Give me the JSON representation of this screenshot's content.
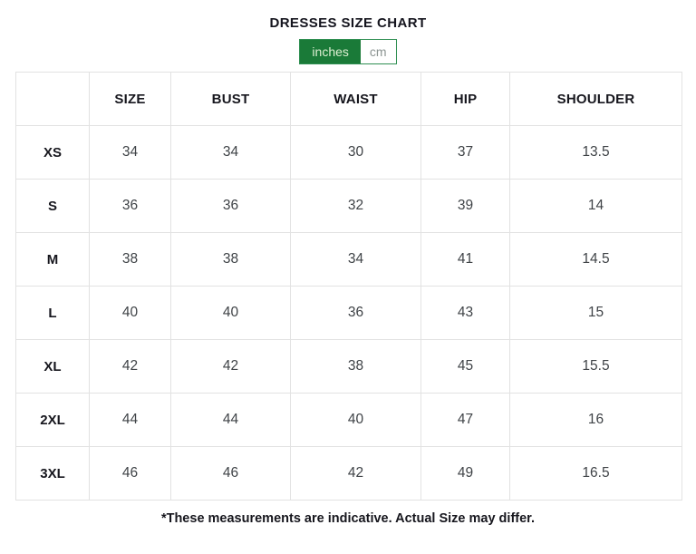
{
  "page": {
    "title": "DRESSES SIZE CHART",
    "footnote": "*These measurements are indicative. Actual Size may differ."
  },
  "unit_toggle": {
    "selected": "inches",
    "options": [
      {
        "label": "inches",
        "active": true
      },
      {
        "label": "cm",
        "active": false
      }
    ]
  },
  "table": {
    "columns": [
      "",
      "SIZE",
      "BUST",
      "WAIST",
      "HIP",
      "SHOULDER"
    ],
    "rows": [
      {
        "label": "XS",
        "values": [
          "34",
          "34",
          "30",
          "37",
          "13.5"
        ]
      },
      {
        "label": "S",
        "values": [
          "36",
          "36",
          "32",
          "39",
          "14"
        ]
      },
      {
        "label": "M",
        "values": [
          "38",
          "38",
          "34",
          "41",
          "14.5"
        ]
      },
      {
        "label": "L",
        "values": [
          "40",
          "40",
          "36",
          "43",
          "15"
        ]
      },
      {
        "label": "XL",
        "values": [
          "42",
          "42",
          "38",
          "45",
          "15.5"
        ]
      },
      {
        "label": "2XL",
        "values": [
          "44",
          "44",
          "40",
          "47",
          "16"
        ]
      },
      {
        "label": "3XL",
        "values": [
          "46",
          "46",
          "42",
          "49",
          "16.5"
        ]
      }
    ]
  },
  "chart_data": {
    "type": "table",
    "title": "DRESSES SIZE CHART",
    "unit": "inches",
    "columns": [
      "SIZE",
      "BUST",
      "WAIST",
      "HIP",
      "SHOULDER"
    ],
    "categories": [
      "XS",
      "S",
      "M",
      "L",
      "XL",
      "2XL",
      "3XL"
    ],
    "series": [
      {
        "name": "SIZE",
        "values": [
          34,
          36,
          38,
          40,
          42,
          44,
          46
        ]
      },
      {
        "name": "BUST",
        "values": [
          34,
          36,
          38,
          40,
          42,
          44,
          46
        ]
      },
      {
        "name": "WAIST",
        "values": [
          30,
          32,
          34,
          36,
          38,
          40,
          42
        ]
      },
      {
        "name": "HIP",
        "values": [
          37,
          39,
          41,
          43,
          45,
          47,
          49
        ]
      },
      {
        "name": "SHOULDER",
        "values": [
          13.5,
          14,
          14.5,
          15,
          15.5,
          16,
          16.5
        ]
      }
    ]
  },
  "colors": {
    "accent_green": "#1a7a38",
    "toggle_border_green": "#2f8f52",
    "active_toggle_text": "#ddefd2",
    "inactive_toggle_text": "#8c9492",
    "table_border": "#e2e2e2",
    "heading_text": "#16161d",
    "value_text": "#3f4347",
    "background": "#ffffff"
  }
}
